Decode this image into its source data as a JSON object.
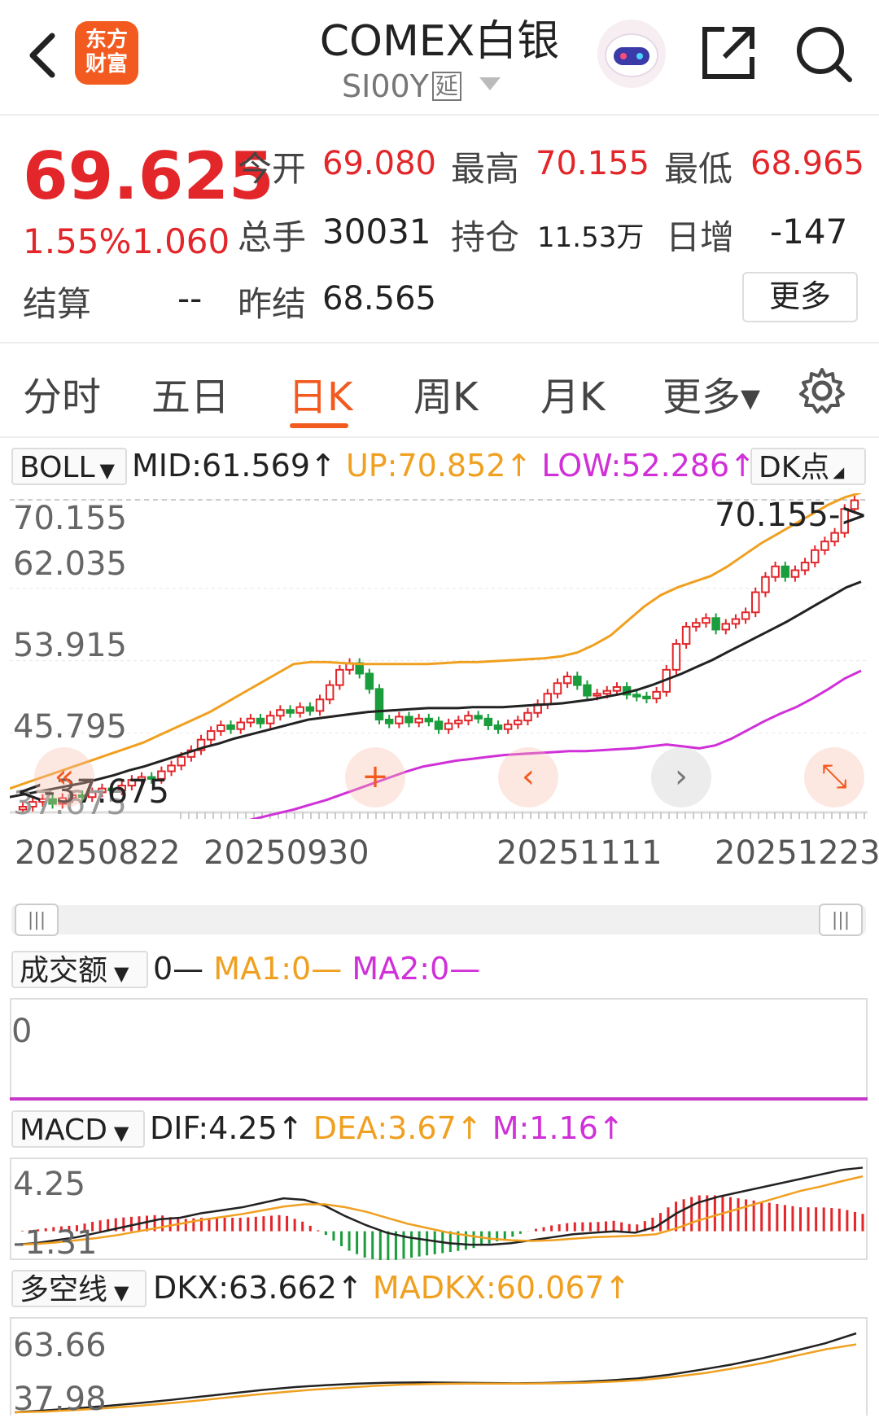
{
  "header": {
    "logo": "东方\n财富",
    "logo_line1": "东方",
    "logo_line2": "财富",
    "title": "COMEX白银",
    "symbol": "SI00Y",
    "badge": "延"
  },
  "quote": {
    "price": "69.625",
    "change_pct": "1.55%",
    "change_abs": "1.060",
    "open_label": "今开",
    "open_value": "69.080",
    "high_label": "最高",
    "high_value": "70.155",
    "low_label": "最低",
    "low_value": "68.965",
    "volume_label": "总手",
    "volume_value": "30031",
    "position_label": "持仓",
    "position_value": "11.53万",
    "daily_inc_label": "日增",
    "daily_inc_value": "-147",
    "settle_label": "结算",
    "settle_value": "--",
    "prev_settle_label": "昨结",
    "prev_settle_value": "68.565",
    "more_label": "更多"
  },
  "tabs": [
    "分时",
    "五日",
    "日K",
    "周K",
    "月K",
    "更多▾"
  ],
  "active_tab": "日K",
  "boll": {
    "selector": "BOLL",
    "mid": "MID:61.569↑",
    "up": "UP:70.852↑",
    "low": "LOW:52.286↑",
    "dk_button": "DK点",
    "y_ticks": [
      "70.155",
      "62.035",
      "53.915",
      "45.795",
      "37.675"
    ],
    "max_mark": "70.155->",
    "min_mark": "<-37.675",
    "dates": [
      "20250822",
      "20250930",
      "20251111",
      "20251223"
    ]
  },
  "volume": {
    "selector": "成交额",
    "legend0": "0—",
    "ma1": "MA1:0—",
    "ma2": "MA2:0—",
    "y_tick": "0"
  },
  "macd": {
    "selector": "MACD",
    "dif": "DIF:4.25↑",
    "dea": "DEA:3.67↑",
    "m": "M:1.16↑",
    "y_top": "4.25",
    "y_bottom": "-1.31"
  },
  "dkx": {
    "selector": "多空线",
    "dkx": "DKX:63.662↑",
    "madkx": "MADKX:60.067↑",
    "y_top": "63.66",
    "y_bottom": "37.98"
  },
  "chart_data": {
    "type": "candlestick",
    "y_range": [
      37.675,
      70.155
    ],
    "x_ticks": [
      "20250822",
      "20250930",
      "20251111",
      "20251223"
    ],
    "closes": [
      38.1,
      38.6,
      38.9,
      38.4,
      39.0,
      39.3,
      39.1,
      39.6,
      40.0,
      39.8,
      40.3,
      40.9,
      41.2,
      41.0,
      41.8,
      42.4,
      43.3,
      44.0,
      45.1,
      46.0,
      46.6,
      46.2,
      46.9,
      47.3,
      46.8,
      47.6,
      48.2,
      47.9,
      48.5,
      48.1,
      49.3,
      50.8,
      52.4,
      53.1,
      52.0,
      50.4,
      47.2,
      46.8,
      47.5,
      46.9,
      47.3,
      47.0,
      46.2,
      46.8,
      47.1,
      47.6,
      47.3,
      46.6,
      46.2,
      46.7,
      47.1,
      47.9,
      48.8,
      49.9,
      51.0,
      51.7,
      50.8,
      49.7,
      49.9,
      50.2,
      50.6,
      49.8,
      49.6,
      49.4,
      50.1,
      52.4,
      55.1,
      56.9,
      57.3,
      57.8,
      56.6,
      57.2,
      57.7,
      58.4,
      60.5,
      62.1,
      63.2,
      62.1,
      62.8,
      63.6,
      64.9,
      65.8,
      66.7,
      69.2,
      70.1
    ],
    "mid": [
      39.1,
      39.4,
      39.7,
      40.0,
      40.3,
      40.6,
      41.0,
      41.4,
      41.9,
      42.3,
      42.8,
      43.3,
      43.8,
      44.3,
      44.7,
      45.2,
      45.6,
      46.0,
      46.4,
      46.8,
      47.2,
      47.4,
      47.6,
      47.8,
      48.0,
      48.1,
      48.2,
      48.3,
      48.4,
      48.4,
      48.4,
      48.5,
      48.5,
      48.5,
      48.6,
      48.7,
      48.8,
      48.9,
      49.1,
      49.3,
      49.6,
      49.9,
      50.3,
      50.8,
      51.4,
      52.0,
      52.7,
      53.4,
      54.2,
      55.0,
      55.8,
      56.6,
      57.4,
      58.3,
      59.2,
      60.1,
      61.0,
      61.6
    ],
    "up": [
      40.0,
      40.6,
      41.2,
      41.8,
      42.4,
      43.0,
      43.6,
      44.2,
      44.8,
      45.6,
      46.4,
      47.2,
      48.0,
      49.0,
      50.0,
      51.0,
      52.0,
      53.0,
      53.2,
      53.2,
      53.1,
      53.0,
      53.0,
      53.0,
      53.0,
      53.0,
      53.1,
      53.2,
      53.2,
      53.3,
      53.4,
      53.5,
      53.6,
      53.8,
      54.2,
      55.0,
      56.0,
      57.5,
      59.0,
      60.2,
      61.0,
      61.6,
      62.2,
      63.2,
      64.4,
      65.6,
      66.6,
      67.6,
      68.6,
      69.6,
      70.4,
      70.9
    ],
    "low": [
      35.0,
      35.3,
      35.6,
      35.9,
      36.2,
      36.6,
      37.0,
      37.4,
      37.8,
      38.3,
      38.8,
      39.4,
      40.0,
      40.6,
      41.2,
      41.8,
      42.3,
      42.6,
      42.9,
      43.1,
      43.3,
      43.5,
      43.6,
      43.7,
      43.8,
      43.9,
      43.9,
      44.0,
      44.1,
      44.2,
      44.4,
      44.6,
      44.4,
      44.2,
      44.5,
      45.2,
      46.1,
      47.0,
      47.8,
      48.5,
      49.4,
      50.4,
      51.5,
      52.3
    ],
    "macd_dif": [
      -0.9,
      -0.8,
      -0.6,
      -0.4,
      -0.1,
      0.2,
      0.5,
      0.8,
      0.9,
      1.2,
      1.4,
      1.6,
      1.9,
      2.2,
      2.1,
      1.7,
      1.0,
      0.4,
      -0.1,
      -0.4,
      -0.6,
      -0.8,
      -0.9,
      -0.9,
      -0.8,
      -0.6,
      -0.4,
      -0.2,
      -0.1,
      0.0,
      -0.1,
      0.3,
      1.2,
      1.9,
      2.3,
      2.6,
      2.9,
      3.2,
      3.5,
      3.8,
      4.1,
      4.25
    ],
    "macd_dea": [
      -0.9,
      -0.85,
      -0.75,
      -0.6,
      -0.45,
      -0.25,
      0.0,
      0.25,
      0.5,
      0.75,
      0.95,
      1.15,
      1.4,
      1.65,
      1.8,
      1.8,
      1.6,
      1.3,
      0.9,
      0.5,
      0.2,
      -0.1,
      -0.3,
      -0.5,
      -0.6,
      -0.65,
      -0.6,
      -0.5,
      -0.4,
      -0.35,
      -0.3,
      -0.2,
      0.2,
      0.7,
      1.1,
      1.5,
      1.9,
      2.3,
      2.7,
      3.0,
      3.35,
      3.67
    ],
    "dkx": [
      37.98,
      38.6,
      39.3,
      40.1,
      41.0,
      42.0,
      43.1,
      44.2,
      45.3,
      46.2,
      46.8,
      47.3,
      47.6,
      47.7,
      47.6,
      47.5,
      47.4,
      47.5,
      47.8,
      48.3,
      49.0,
      50.2,
      51.8,
      53.5,
      55.6,
      57.9,
      60.4,
      63.66
    ],
    "madkx": [
      37.98,
      38.2,
      38.7,
      39.3,
      40.0,
      40.8,
      41.7,
      42.7,
      43.7,
      44.6,
      45.4,
      46.0,
      46.6,
      47.0,
      47.2,
      47.3,
      47.3,
      47.3,
      47.4,
      47.6,
      48.0,
      48.6,
      49.6,
      50.8,
      52.4,
      54.2,
      56.4,
      58.5,
      60.07
    ],
    "colors": {
      "up": "#e2262a",
      "down": "#1a9d3c",
      "mid": "#222222",
      "upper": "#f0a020",
      "lower": "#d030d8"
    }
  }
}
